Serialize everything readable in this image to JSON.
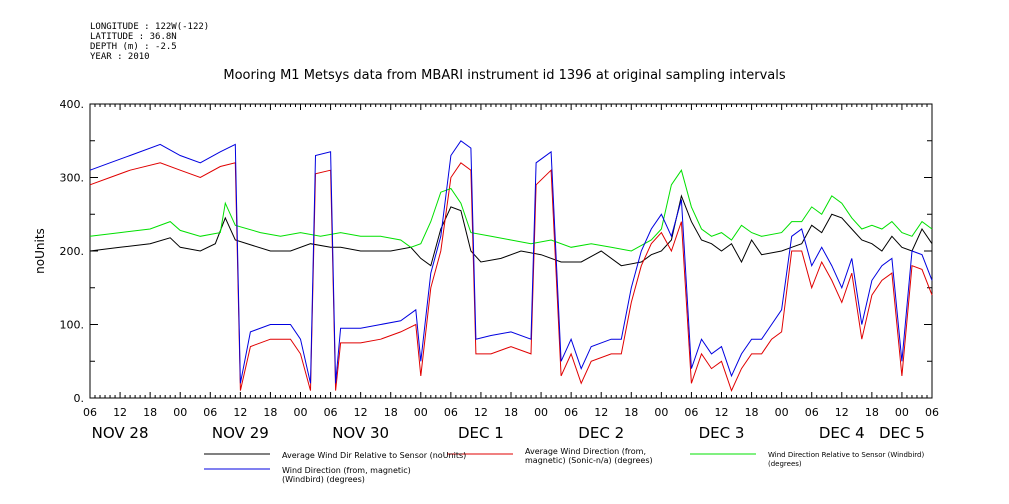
{
  "meta": {
    "longitude": "LONGITUDE : 122W(-122)",
    "latitude": "LATITUDE : 36.8N",
    "depth": "DEPTH (m) : -2.5",
    "year": "YEAR : 2010"
  },
  "chart_data": {
    "type": "line",
    "title": "Mooring M1 Metsys data from MBARI instrument id 1396 at original sampling intervals",
    "ylabel": "noUnits",
    "xlabel": "",
    "ylim": [
      0,
      400
    ],
    "yticks": [
      "0.",
      "100.",
      "200.",
      "300.",
      "400."
    ],
    "xlim_hours": [
      0,
      168
    ],
    "hour_ticks": [
      "06",
      "12",
      "18",
      "00",
      "06",
      "12",
      "18",
      "00",
      "06",
      "12",
      "18",
      "00",
      "06",
      "12",
      "18",
      "00",
      "06",
      "12",
      "18",
      "00",
      "06",
      "12",
      "18",
      "00",
      "06",
      "12",
      "18",
      "00",
      "06"
    ],
    "day_labels": [
      {
        "label": "NOV 28",
        "hour": 6
      },
      {
        "label": "NOV 29",
        "hour": 30
      },
      {
        "label": "NOV 30",
        "hour": 54
      },
      {
        "label": "DEC  1",
        "hour": 78
      },
      {
        "label": "DEC  2",
        "hour": 102
      },
      {
        "label": "DEC  3",
        "hour": 126
      },
      {
        "label": "DEC  4",
        "hour": 150
      },
      {
        "label": "DEC  5",
        "hour": 162
      }
    ],
    "grid": false,
    "legend_position": "bottom",
    "series": [
      {
        "name": "Average Wind Dir Relative to Sensor (noUnits)",
        "color": "#000000",
        "points": [
          [
            0,
            200
          ],
          [
            6,
            205
          ],
          [
            12,
            210
          ],
          [
            16,
            218
          ],
          [
            18,
            205
          ],
          [
            22,
            200
          ],
          [
            25,
            210
          ],
          [
            27,
            245
          ],
          [
            29,
            215
          ],
          [
            36,
            200
          ],
          [
            40,
            200
          ],
          [
            44,
            210
          ],
          [
            48,
            205
          ],
          [
            50,
            205
          ],
          [
            54,
            200
          ],
          [
            60,
            200
          ],
          [
            64,
            205
          ],
          [
            66,
            190
          ],
          [
            68,
            180
          ],
          [
            70,
            230
          ],
          [
            72,
            260
          ],
          [
            74,
            255
          ],
          [
            76,
            200
          ],
          [
            78,
            185
          ],
          [
            82,
            190
          ],
          [
            86,
            200
          ],
          [
            90,
            195
          ],
          [
            94,
            185
          ],
          [
            98,
            185
          ],
          [
            102,
            200
          ],
          [
            106,
            180
          ],
          [
            110,
            185
          ],
          [
            112,
            195
          ],
          [
            114,
            200
          ],
          [
            116,
            215
          ],
          [
            118,
            275
          ],
          [
            120,
            240
          ],
          [
            122,
            215
          ],
          [
            124,
            210
          ],
          [
            126,
            200
          ],
          [
            128,
            210
          ],
          [
            130,
            185
          ],
          [
            132,
            215
          ],
          [
            134,
            195
          ],
          [
            138,
            200
          ],
          [
            140,
            205
          ],
          [
            142,
            210
          ],
          [
            144,
            235
          ],
          [
            146,
            225
          ],
          [
            148,
            250
          ],
          [
            150,
            245
          ],
          [
            152,
            230
          ],
          [
            154,
            215
          ],
          [
            156,
            210
          ],
          [
            158,
            200
          ],
          [
            160,
            220
          ],
          [
            162,
            205
          ],
          [
            164,
            200
          ],
          [
            166,
            230
          ],
          [
            168,
            210
          ]
        ]
      },
      {
        "name": "Average Wind Direction (from, magnetic) (Sonic-n/a) (degrees)",
        "color": "#e00000",
        "points": [
          [
            0,
            290
          ],
          [
            4,
            300
          ],
          [
            8,
            310
          ],
          [
            14,
            320
          ],
          [
            18,
            310
          ],
          [
            22,
            300
          ],
          [
            26,
            315
          ],
          [
            29,
            320
          ],
          [
            30,
            10
          ],
          [
            32,
            70
          ],
          [
            36,
            80
          ],
          [
            40,
            80
          ],
          [
            42,
            60
          ],
          [
            44,
            10
          ],
          [
            45,
            305
          ],
          [
            48,
            310
          ],
          [
            49,
            10
          ],
          [
            50,
            75
          ],
          [
            54,
            75
          ],
          [
            58,
            80
          ],
          [
            62,
            90
          ],
          [
            65,
            100
          ],
          [
            66,
            30
          ],
          [
            68,
            150
          ],
          [
            70,
            200
          ],
          [
            72,
            300
          ],
          [
            74,
            320
          ],
          [
            76,
            310
          ],
          [
            77,
            60
          ],
          [
            80,
            60
          ],
          [
            84,
            70
          ],
          [
            88,
            60
          ],
          [
            89,
            290
          ],
          [
            92,
            310
          ],
          [
            94,
            30
          ],
          [
            96,
            60
          ],
          [
            98,
            20
          ],
          [
            100,
            50
          ],
          [
            104,
            60
          ],
          [
            106,
            60
          ],
          [
            108,
            130
          ],
          [
            110,
            180
          ],
          [
            112,
            210
          ],
          [
            114,
            225
          ],
          [
            116,
            200
          ],
          [
            118,
            240
          ],
          [
            120,
            20
          ],
          [
            122,
            60
          ],
          [
            124,
            40
          ],
          [
            126,
            50
          ],
          [
            128,
            10
          ],
          [
            130,
            40
          ],
          [
            132,
            60
          ],
          [
            134,
            60
          ],
          [
            136,
            80
          ],
          [
            138,
            90
          ],
          [
            140,
            200
          ],
          [
            142,
            200
          ],
          [
            144,
            150
          ],
          [
            146,
            185
          ],
          [
            148,
            160
          ],
          [
            150,
            130
          ],
          [
            152,
            170
          ],
          [
            154,
            80
          ],
          [
            156,
            140
          ],
          [
            158,
            160
          ],
          [
            160,
            170
          ],
          [
            162,
            30
          ],
          [
            164,
            180
          ],
          [
            166,
            175
          ],
          [
            168,
            140
          ]
        ]
      },
      {
        "name": "Wind Direction Relative to Sensor (Windbird) (degrees)",
        "color": "#00e000",
        "points": [
          [
            0,
            220
          ],
          [
            6,
            225
          ],
          [
            12,
            230
          ],
          [
            16,
            240
          ],
          [
            18,
            228
          ],
          [
            22,
            220
          ],
          [
            26,
            225
          ],
          [
            27,
            265
          ],
          [
            29,
            235
          ],
          [
            34,
            225
          ],
          [
            38,
            220
          ],
          [
            42,
            225
          ],
          [
            46,
            220
          ],
          [
            50,
            225
          ],
          [
            54,
            220
          ],
          [
            58,
            220
          ],
          [
            62,
            215
          ],
          [
            64,
            205
          ],
          [
            66,
            210
          ],
          [
            68,
            240
          ],
          [
            70,
            280
          ],
          [
            72,
            285
          ],
          [
            74,
            265
          ],
          [
            76,
            225
          ],
          [
            80,
            220
          ],
          [
            84,
            215
          ],
          [
            88,
            210
          ],
          [
            92,
            215
          ],
          [
            96,
            205
          ],
          [
            100,
            210
          ],
          [
            104,
            205
          ],
          [
            108,
            200
          ],
          [
            112,
            215
          ],
          [
            114,
            230
          ],
          [
            116,
            290
          ],
          [
            118,
            310
          ],
          [
            120,
            260
          ],
          [
            122,
            230
          ],
          [
            124,
            220
          ],
          [
            126,
            225
          ],
          [
            128,
            215
          ],
          [
            130,
            235
          ],
          [
            132,
            225
          ],
          [
            134,
            220
          ],
          [
            138,
            225
          ],
          [
            140,
            240
          ],
          [
            142,
            240
          ],
          [
            144,
            260
          ],
          [
            146,
            250
          ],
          [
            148,
            275
          ],
          [
            150,
            265
          ],
          [
            152,
            245
          ],
          [
            154,
            230
          ],
          [
            156,
            235
          ],
          [
            158,
            230
          ],
          [
            160,
            240
          ],
          [
            162,
            225
          ],
          [
            164,
            220
          ],
          [
            166,
            240
          ],
          [
            168,
            230
          ]
        ]
      },
      {
        "name": "Wind Direction (from, magnetic) (Windbird) (degrees)",
        "color": "#0000e0",
        "points": [
          [
            0,
            310
          ],
          [
            4,
            320
          ],
          [
            8,
            330
          ],
          [
            14,
            345
          ],
          [
            18,
            330
          ],
          [
            22,
            320
          ],
          [
            26,
            335
          ],
          [
            29,
            345
          ],
          [
            30,
            20
          ],
          [
            32,
            90
          ],
          [
            36,
            100
          ],
          [
            40,
            100
          ],
          [
            42,
            80
          ],
          [
            44,
            20
          ],
          [
            45,
            330
          ],
          [
            48,
            335
          ],
          [
            49,
            20
          ],
          [
            50,
            95
          ],
          [
            54,
            95
          ],
          [
            58,
            100
          ],
          [
            62,
            105
          ],
          [
            65,
            120
          ],
          [
            66,
            50
          ],
          [
            68,
            170
          ],
          [
            70,
            220
          ],
          [
            72,
            330
          ],
          [
            74,
            350
          ],
          [
            76,
            340
          ],
          [
            77,
            80
          ],
          [
            80,
            85
          ],
          [
            84,
            90
          ],
          [
            88,
            80
          ],
          [
            89,
            320
          ],
          [
            92,
            335
          ],
          [
            94,
            50
          ],
          [
            96,
            80
          ],
          [
            98,
            40
          ],
          [
            100,
            70
          ],
          [
            104,
            80
          ],
          [
            106,
            80
          ],
          [
            108,
            150
          ],
          [
            110,
            200
          ],
          [
            112,
            230
          ],
          [
            114,
            250
          ],
          [
            116,
            220
          ],
          [
            118,
            270
          ],
          [
            120,
            40
          ],
          [
            122,
            80
          ],
          [
            124,
            60
          ],
          [
            126,
            70
          ],
          [
            128,
            30
          ],
          [
            130,
            60
          ],
          [
            132,
            80
          ],
          [
            134,
            80
          ],
          [
            136,
            100
          ],
          [
            138,
            120
          ],
          [
            140,
            220
          ],
          [
            142,
            230
          ],
          [
            144,
            180
          ],
          [
            146,
            205
          ],
          [
            148,
            180
          ],
          [
            150,
            150
          ],
          [
            152,
            190
          ],
          [
            154,
            100
          ],
          [
            156,
            160
          ],
          [
            158,
            180
          ],
          [
            160,
            190
          ],
          [
            162,
            50
          ],
          [
            164,
            200
          ],
          [
            166,
            195
          ],
          [
            168,
            160
          ]
        ]
      }
    ]
  }
}
